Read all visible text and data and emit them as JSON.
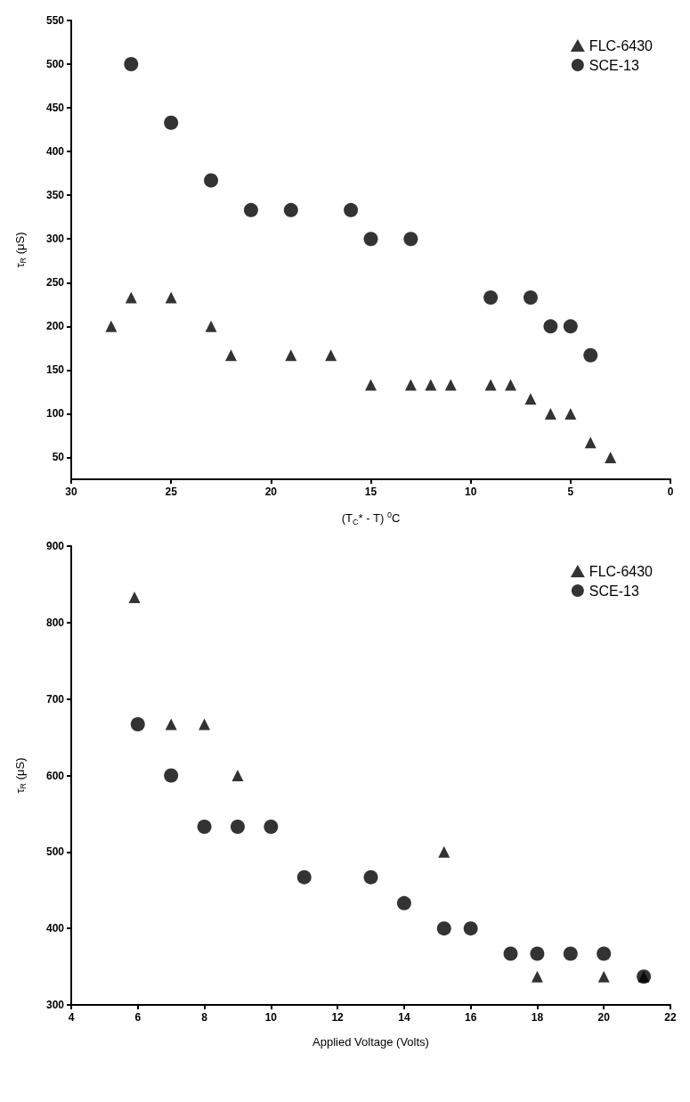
{
  "chart_data": [
    {
      "type": "scatter",
      "xlabel": "(T$_{C}$* - T) $^{0}$C",
      "ylabel": "τ$_{R}$ (μS)",
      "xlim": [
        30,
        0
      ],
      "xticks": [
        30,
        25,
        20,
        15,
        10,
        5,
        0
      ],
      "ylim": [
        25,
        550
      ],
      "yticks": [
        50,
        100,
        150,
        200,
        250,
        300,
        350,
        400,
        450,
        500,
        550
      ],
      "grid": false,
      "legend": "top right",
      "series": [
        {
          "name": "FLC-6430",
          "color": "#000000",
          "marker": "triangle",
          "x": [
            28,
            27,
            25,
            23,
            22,
            19,
            17,
            15,
            13,
            12,
            11,
            9,
            8,
            7,
            6,
            5,
            4,
            3
          ],
          "values": [
            200,
            233,
            233,
            200,
            167,
            167,
            167,
            133,
            133,
            133,
            133,
            133,
            133,
            117,
            100,
            100,
            67,
            50
          ]
        },
        {
          "name": "SCE-13",
          "color": "#000000",
          "marker": "circle",
          "x": [
            27,
            25,
            23,
            21,
            19,
            16,
            15,
            13,
            9,
            7,
            6,
            5,
            4
          ],
          "values": [
            500,
            433,
            367,
            333,
            333,
            333,
            300,
            300,
            233,
            233,
            200,
            200,
            167
          ]
        }
      ]
    },
    {
      "type": "scatter",
      "xlabel": "Applied Voltage (Volts)",
      "ylabel": "τ$_{R}$ (μS)",
      "xlim": [
        4,
        22
      ],
      "xticks": [
        4,
        6,
        8,
        10,
        12,
        14,
        16,
        18,
        20,
        22
      ],
      "ylim": [
        300,
        900
      ],
      "yticks": [
        300,
        400,
        500,
        600,
        700,
        800,
        900
      ],
      "grid": false,
      "legend": "top right",
      "series": [
        {
          "name": "FLC-6430",
          "color": "#000000",
          "marker": "triangle",
          "x": [
            5.9,
            7,
            8,
            9,
            15.2,
            18,
            20,
            21.2
          ],
          "values": [
            833,
            667,
            667,
            600,
            500,
            337,
            337,
            337
          ]
        },
        {
          "name": "SCE-13",
          "color": "#000000",
          "marker": "circle",
          "x": [
            6,
            7,
            8,
            9,
            10,
            11,
            13,
            14,
            15.2,
            16,
            17.2,
            18,
            19,
            20,
            21.2
          ],
          "values": [
            667,
            600,
            533,
            533,
            533,
            467,
            467,
            433,
            400,
            400,
            367,
            367,
            367,
            367,
            337
          ]
        }
      ]
    }
  ]
}
